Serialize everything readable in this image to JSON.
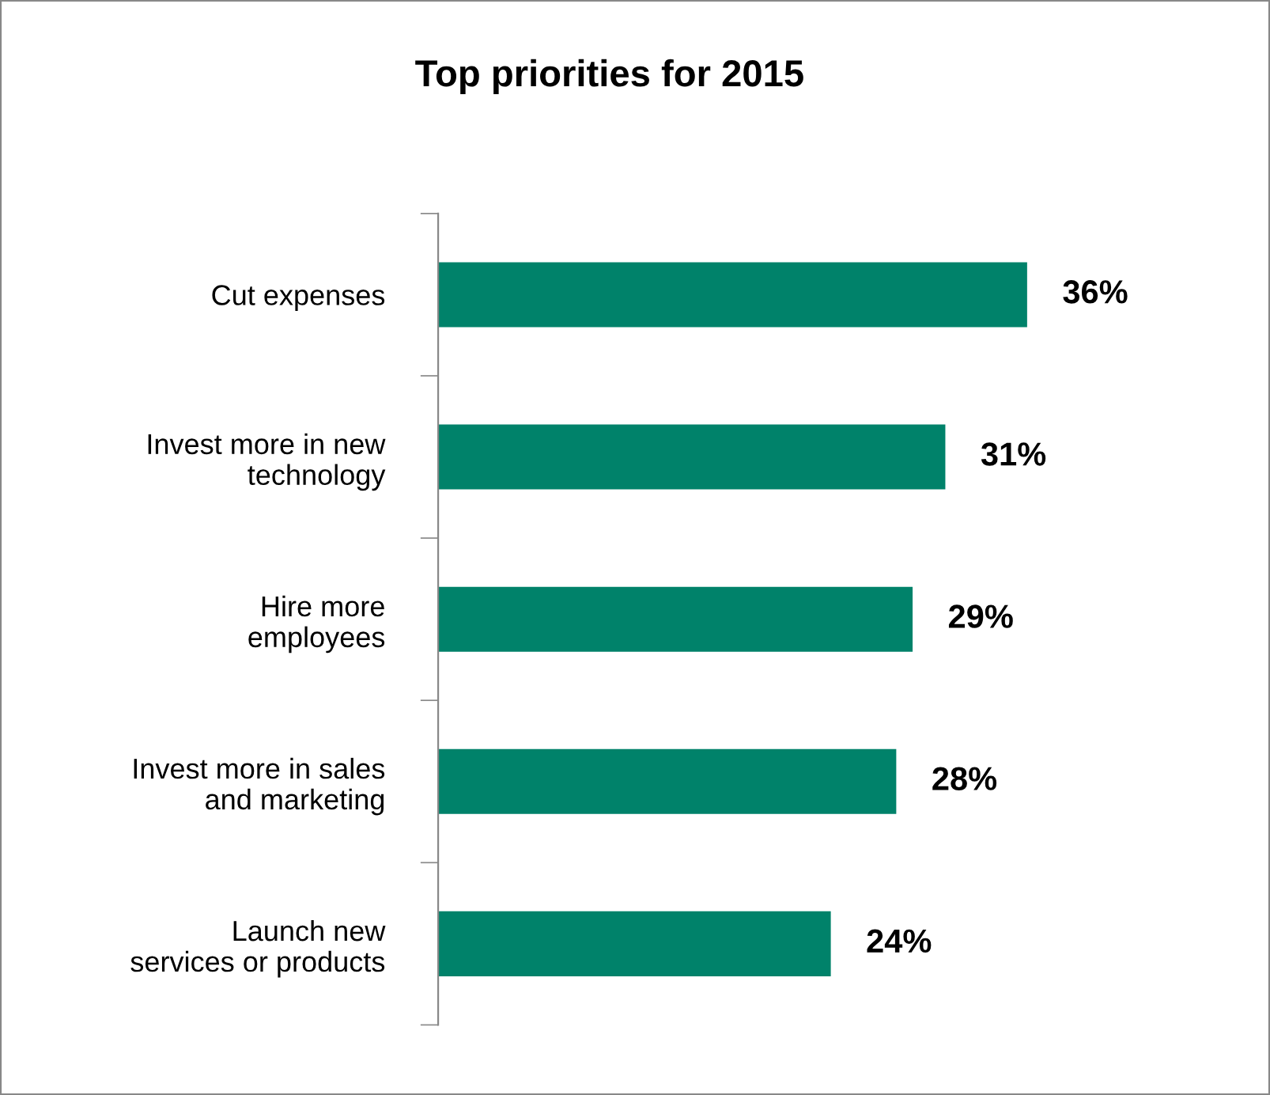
{
  "chart_data": {
    "type": "bar",
    "orientation": "horizontal",
    "title": "Top priorities for 2015",
    "categories": [
      "Cut expenses",
      "Invest more in new\ntechnology",
      "Hire more\nemployees",
      "Invest more in sales\nand marketing",
      "Launch new\nservices or products"
    ],
    "values": [
      36,
      31,
      29,
      28,
      24
    ],
    "value_labels": [
      "36%",
      "31%",
      "29%",
      "28%",
      "24%"
    ],
    "color": "#00826a",
    "grid": false,
    "legend": false
  }
}
